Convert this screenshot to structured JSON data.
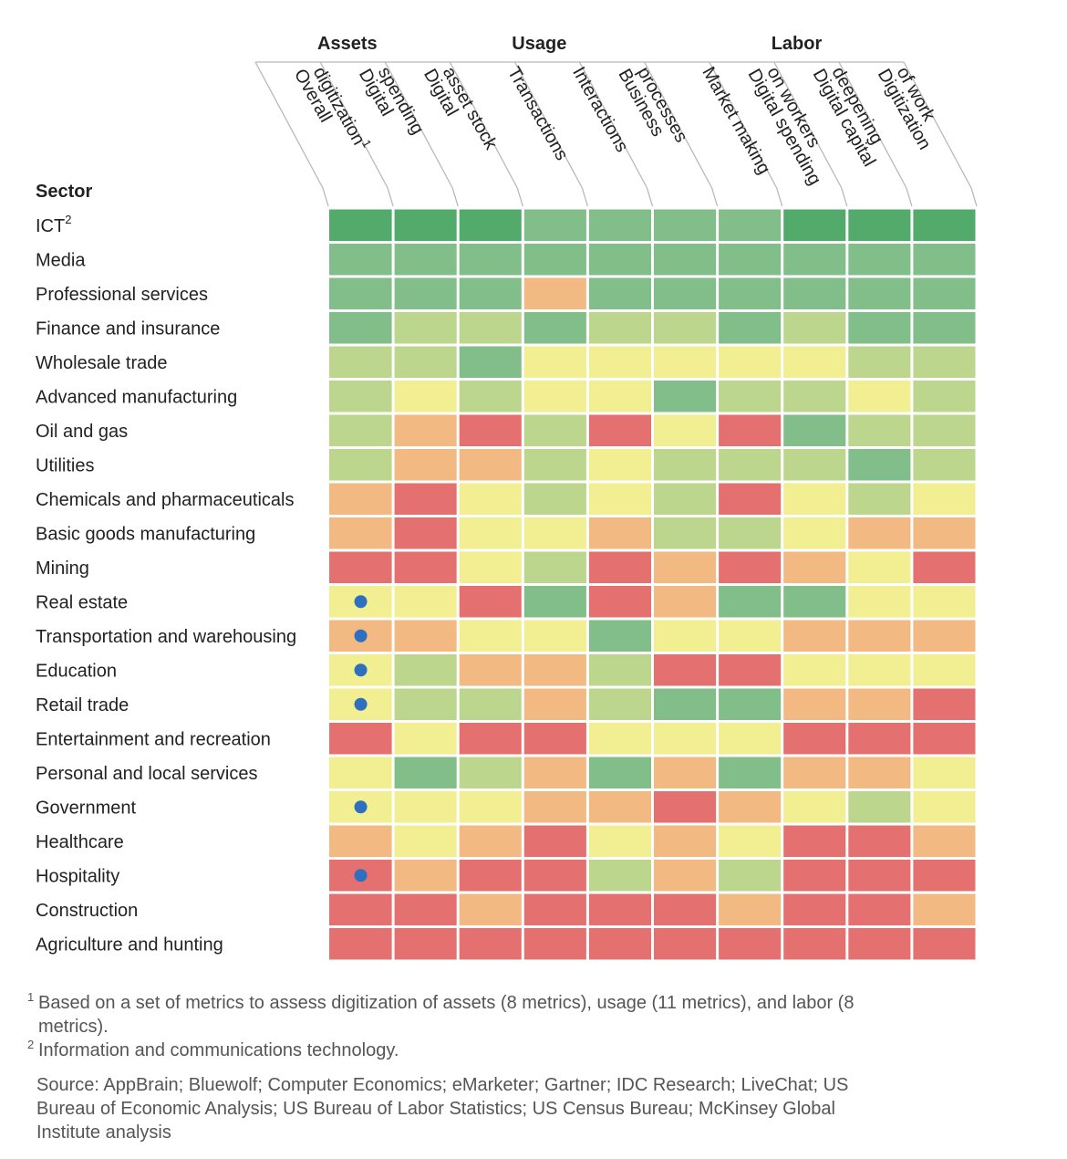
{
  "chart_data": {
    "type": "heatmap",
    "scale": {
      "5": "#52ab6a",
      "4": "#82be8a",
      "3": "#bcd68e",
      "2": "#f2ee92",
      "1": "#f2b982",
      "0": "#e57070"
    },
    "dot_color": "#2f6fbf",
    "groups": [
      {
        "name": "Assets",
        "columns": [
          0,
          1,
          2
        ]
      },
      {
        "name": "Usage",
        "columns": [
          3,
          4,
          5,
          6
        ]
      },
      {
        "name": "Labor",
        "columns": [
          7,
          8,
          9
        ]
      }
    ],
    "columns": [
      {
        "lines": [
          "Overall",
          "digitization"
        ],
        "sup": "1"
      },
      {
        "lines": [
          "Digital",
          "spending"
        ]
      },
      {
        "lines": [
          "Digital",
          "asset stock"
        ]
      },
      {
        "lines": [
          "Transactions"
        ]
      },
      {
        "lines": [
          "Interactions"
        ]
      },
      {
        "lines": [
          "Business",
          "processes"
        ]
      },
      {
        "lines": [
          "Market making"
        ]
      },
      {
        "lines": [
          "Digital spending",
          "on workers"
        ]
      },
      {
        "lines": [
          "Digital capital",
          "deepening"
        ]
      },
      {
        "lines": [
          "Digitization",
          "of work"
        ]
      }
    ],
    "row_header": "Sector",
    "rows": [
      {
        "sector": "ICT",
        "sup": "2",
        "values": [
          5,
          5,
          5,
          4,
          4,
          4,
          4,
          5,
          5,
          5
        ],
        "dot": false
      },
      {
        "sector": "Media",
        "values": [
          4,
          4,
          4,
          4,
          4,
          4,
          4,
          4,
          4,
          4
        ],
        "dot": false
      },
      {
        "sector": "Professional services",
        "values": [
          4,
          4,
          4,
          1,
          4,
          4,
          4,
          4,
          4,
          4
        ],
        "dot": false
      },
      {
        "sector": "Finance and insurance",
        "values": [
          4,
          3,
          3,
          4,
          3,
          3,
          4,
          3,
          4,
          4
        ],
        "dot": false
      },
      {
        "sector": "Wholesale trade",
        "values": [
          3,
          3,
          4,
          2,
          2,
          2,
          2,
          2,
          3,
          3
        ],
        "dot": false
      },
      {
        "sector": "Advanced manufacturing",
        "values": [
          3,
          2,
          3,
          2,
          2,
          4,
          3,
          3,
          2,
          3
        ],
        "dot": false
      },
      {
        "sector": "Oil and gas",
        "values": [
          3,
          1,
          0,
          3,
          0,
          2,
          0,
          4,
          3,
          3
        ],
        "dot": false
      },
      {
        "sector": "Utilities",
        "values": [
          3,
          1,
          1,
          3,
          2,
          3,
          3,
          3,
          4,
          3
        ],
        "dot": false
      },
      {
        "sector": "Chemicals and pharmaceuticals",
        "values": [
          1,
          0,
          2,
          3,
          2,
          3,
          0,
          2,
          3,
          2
        ],
        "dot": false
      },
      {
        "sector": "Basic goods manufacturing",
        "values": [
          1,
          0,
          2,
          2,
          1,
          3,
          3,
          2,
          1,
          1
        ],
        "dot": false
      },
      {
        "sector": "Mining",
        "values": [
          0,
          0,
          2,
          3,
          0,
          1,
          0,
          1,
          2,
          0
        ],
        "dot": false
      },
      {
        "sector": "Real estate",
        "values": [
          2,
          2,
          0,
          4,
          0,
          1,
          4,
          4,
          2,
          2
        ],
        "dot": true
      },
      {
        "sector": "Transportation and warehousing",
        "values": [
          1,
          1,
          2,
          2,
          4,
          2,
          2,
          1,
          1,
          1
        ],
        "dot": true
      },
      {
        "sector": "Education",
        "values": [
          2,
          3,
          1,
          1,
          3,
          0,
          0,
          2,
          2,
          2
        ],
        "dot": true
      },
      {
        "sector": "Retail trade",
        "values": [
          2,
          3,
          3,
          1,
          3,
          4,
          4,
          1,
          1,
          0
        ],
        "dot": true
      },
      {
        "sector": "Entertainment and recreation",
        "values": [
          0,
          2,
          0,
          0,
          2,
          2,
          2,
          0,
          0,
          0
        ],
        "dot": false
      },
      {
        "sector": "Personal and local services",
        "values": [
          2,
          4,
          3,
          1,
          4,
          1,
          4,
          1,
          1,
          2
        ],
        "dot": false
      },
      {
        "sector": "Government",
        "values": [
          2,
          2,
          2,
          1,
          1,
          0,
          1,
          2,
          3,
          2
        ],
        "dot": true
      },
      {
        "sector": "Healthcare",
        "values": [
          1,
          2,
          1,
          0,
          2,
          1,
          2,
          0,
          0,
          1
        ],
        "dot": false
      },
      {
        "sector": "Hospitality",
        "values": [
          0,
          1,
          0,
          0,
          3,
          1,
          3,
          0,
          0,
          0
        ],
        "dot": true
      },
      {
        "sector": "Construction",
        "values": [
          0,
          0,
          1,
          0,
          0,
          0,
          1,
          0,
          0,
          1
        ],
        "dot": false
      },
      {
        "sector": "Agriculture and hunting",
        "values": [
          0,
          0,
          0,
          0,
          0,
          0,
          0,
          0,
          0,
          0
        ],
        "dot": false
      }
    ]
  },
  "footnotes": {
    "note1_marker": "1",
    "note1": "Based on a set of metrics to assess digitization of assets (8 metrics), usage (11 metrics), and labor (8 metrics).",
    "note2_marker": "2",
    "note2": "Information and communications technology.",
    "source": "Source: AppBrain; Bluewolf; Computer Economics; eMarketer; Gartner; IDC Research; LiveChat; US Bureau of Economic Analysis; US Bureau of Labor Statistics; US Census Bureau; McKinsey Global Institute analysis"
  }
}
